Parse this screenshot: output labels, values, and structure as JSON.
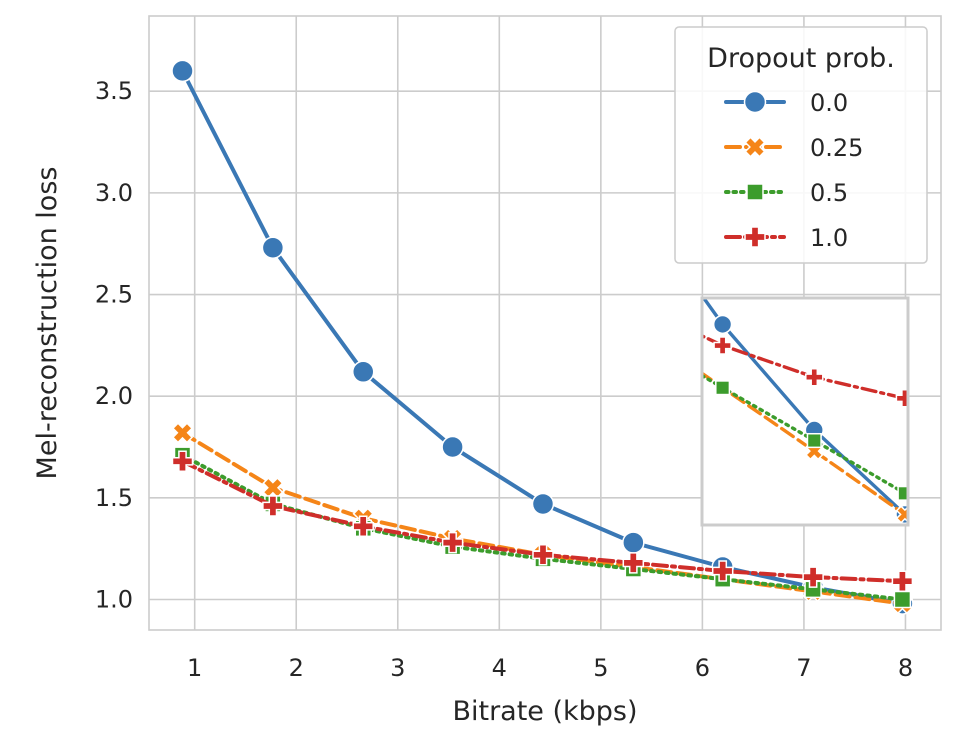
{
  "chart_data": {
    "type": "line",
    "xlabel": "Bitrate (kbps)",
    "ylabel": "Mel-reconstruction loss",
    "xlim": [
      0.55,
      8.35
    ],
    "ylim": [
      0.85,
      3.87
    ],
    "xticks": [
      1,
      2,
      3,
      4,
      5,
      6,
      7,
      8
    ],
    "xtick_labels": [
      "1",
      "2",
      "3",
      "4",
      "5",
      "6",
      "7",
      "8"
    ],
    "yticks": [
      1.0,
      1.5,
      2.0,
      2.5,
      3.0,
      3.5
    ],
    "ytick_labels": [
      "1.0",
      "1.5",
      "2.0",
      "2.5",
      "3.0",
      "3.5"
    ],
    "grid": true,
    "legend": {
      "title": "Dropout prob.",
      "position": "top-right"
    },
    "x": [
      0.88,
      1.77,
      2.66,
      3.54,
      4.43,
      5.32,
      6.2,
      7.09,
      7.97
    ],
    "series": [
      {
        "name": "0.0",
        "color": "#3a78b5",
        "dash": "solid",
        "marker": "circle",
        "values": [
          3.6,
          2.73,
          2.12,
          1.75,
          1.47,
          1.28,
          1.16,
          1.06,
          0.98
        ]
      },
      {
        "name": "0.25",
        "color": "#f58518",
        "dash": "dashed",
        "marker": "x",
        "values": [
          1.82,
          1.55,
          1.4,
          1.3,
          1.22,
          1.16,
          1.1,
          1.04,
          0.98
        ]
      },
      {
        "name": "0.5",
        "color": "#3c9c2c",
        "dash": "dotted",
        "marker": "square",
        "values": [
          1.71,
          1.47,
          1.35,
          1.26,
          1.2,
          1.15,
          1.1,
          1.05,
          1.0
        ]
      },
      {
        "name": "1.0",
        "color": "#cf2e2a",
        "dash": "dashdot",
        "marker": "plus",
        "values": [
          1.68,
          1.46,
          1.36,
          1.28,
          1.22,
          1.18,
          1.14,
          1.11,
          1.09
        ]
      }
    ],
    "inset": {
      "xlim": [
        6.0,
        8.0
      ],
      "ylim": [
        0.97,
        1.185
      ]
    }
  }
}
